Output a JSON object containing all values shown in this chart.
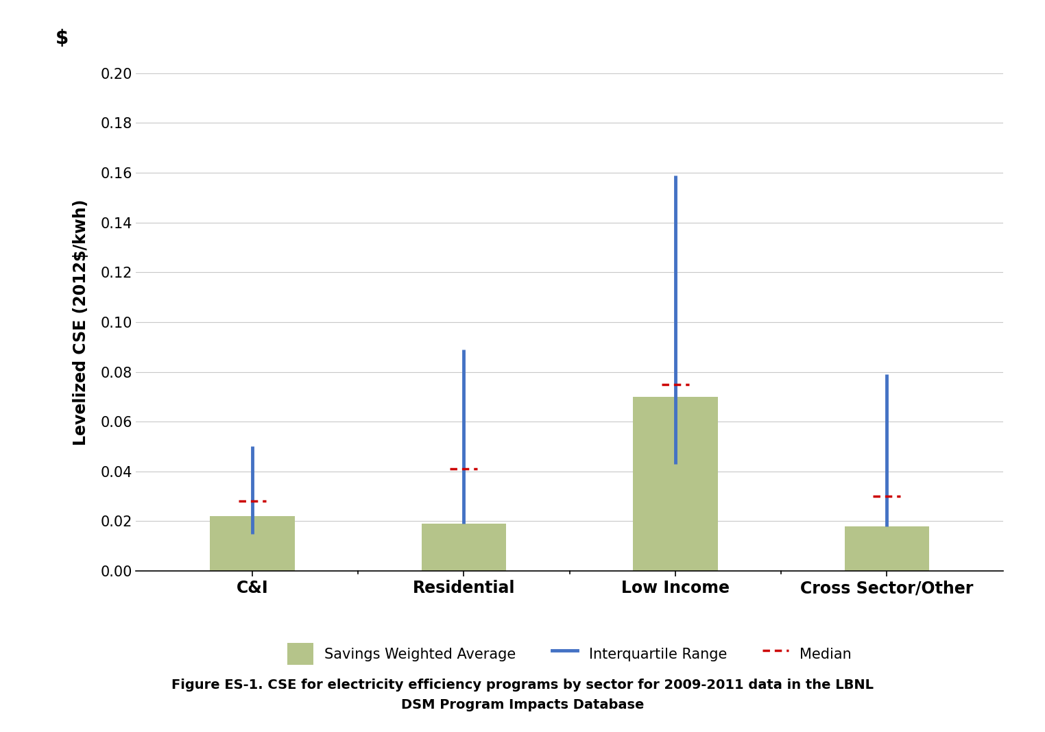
{
  "categories": [
    "C&I",
    "Residential",
    "Low Income",
    "Cross Sector/Other"
  ],
  "bar_values": [
    0.022,
    0.019,
    0.07,
    0.018
  ],
  "iqr_low": [
    0.015,
    0.019,
    0.043,
    0.018
  ],
  "iqr_high": [
    0.05,
    0.089,
    0.159,
    0.079
  ],
  "medians": [
    0.028,
    0.041,
    0.075,
    0.03
  ],
  "bar_color": "#b5c48a",
  "iqr_color": "#4472c4",
  "median_color": "#cc0000",
  "background_color": "#ffffff",
  "grid_color": "#c8c8c8",
  "ylabel": "Levelized CSE (2012$/kwh)",
  "dollar_label": "$",
  "ylim": [
    0.0,
    0.2
  ],
  "yticks": [
    0.0,
    0.02,
    0.04,
    0.06,
    0.08,
    0.1,
    0.12,
    0.14,
    0.16,
    0.18,
    0.2
  ],
  "legend_swa": "Savings Weighted Average",
  "legend_iqr": "Interquartile Range",
  "legend_med": "Median",
  "caption_line1": "Figure ES-1. CSE for electricity efficiency programs by sector for 2009-2011 data in the LBNL",
  "caption_line2": "DSM Program Impacts Database",
  "bar_width": 0.4,
  "median_xwidth": 0.13,
  "iqr_linewidth": 3.5,
  "median_linewidth": 2.5
}
